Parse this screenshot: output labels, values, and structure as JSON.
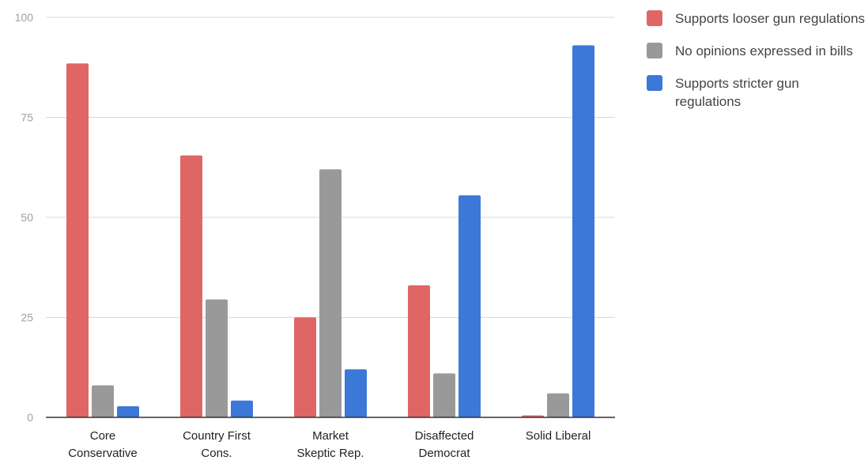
{
  "chart_data": {
    "type": "bar",
    "categories": [
      [
        "Core",
        "Conservative"
      ],
      [
        "Country First",
        "Cons."
      ],
      [
        "Market",
        "Skeptic Rep."
      ],
      [
        "Disaffected",
        "Democrat"
      ],
      [
        "Solid Liberal"
      ]
    ],
    "series": [
      {
        "name": "Supports looser gun regulations",
        "color": "#e06666",
        "values": [
          88.5,
          65.5,
          25,
          33,
          0.5
        ]
      },
      {
        "name": "No opinions expressed in bills",
        "color": "#999999",
        "values": [
          8,
          29.5,
          62,
          11,
          6
        ]
      },
      {
        "name": "Supports stricter gun regulations",
        "color": "#3c78d8",
        "values": [
          2.8,
          4.2,
          12,
          55.5,
          93
        ]
      }
    ],
    "ylim": [
      0,
      100
    ],
    "yticks": [
      0,
      25,
      50,
      75,
      100
    ],
    "grid": true,
    "legend_position": "right"
  }
}
